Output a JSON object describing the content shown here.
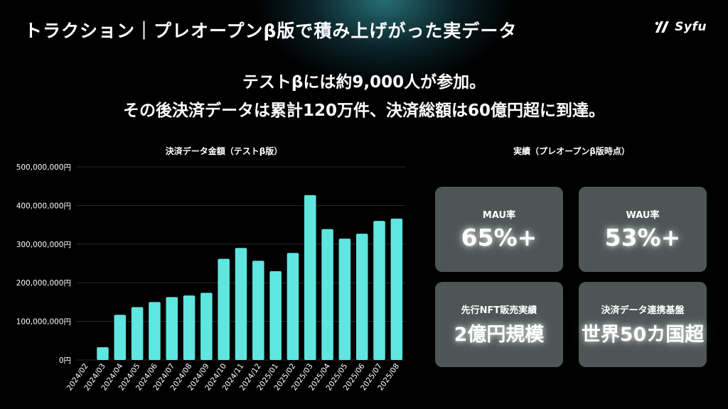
{
  "header": {
    "title": "トラクション｜プレオープンβ版で積み上げがった実データ",
    "logo_text": "Syfu",
    "logo_icon": "syfu-logo-mark"
  },
  "headline": {
    "line1": "テストβには約9,000人が参加。",
    "line2": "その後決済データは累計120万件、決済総額は60億円超に到達。"
  },
  "stats": {
    "title": "実績（プレオープンβ版時点）",
    "cards": [
      {
        "label": "MAU率",
        "value": "65%+"
      },
      {
        "label": "WAU率",
        "value": "53%+"
      },
      {
        "label": "先行NFT販売実績",
        "value": "2億円規模"
      },
      {
        "label": "決済データ連携基盤",
        "value": "世界50カ国超"
      }
    ]
  },
  "colors": {
    "bar": "#5ee6df",
    "background": "#000000",
    "card": "#4d5655",
    "grid": "#2a2a2a"
  },
  "chart_data": {
    "type": "bar",
    "title": "決済データ金額（テストβ版）",
    "categories": [
      "2024/02",
      "2024/03",
      "2024/04",
      "2024/05",
      "2024/06",
      "2024/07",
      "2024/08",
      "2024/09",
      "2024/10",
      "2024/11",
      "2024/12",
      "2025/01",
      "2025/02",
      "2025/03",
      "2025/04",
      "2025/05",
      "2025/06",
      "2025/07",
      "2025/08"
    ],
    "values": [
      0,
      33000000,
      117000000,
      137000000,
      150000000,
      163000000,
      167000000,
      174000000,
      262000000,
      290000000,
      257000000,
      230000000,
      277000000,
      427000000,
      339000000,
      314000000,
      327000000,
      360000000,
      366000000
    ],
    "ylim": [
      0,
      500000000
    ],
    "yticks": [
      0,
      100000000,
      200000000,
      300000000,
      400000000,
      500000000
    ],
    "ytick_labels": [
      "0円",
      "100,000,000円",
      "200,000,000円",
      "300,000,000円",
      "400,000,000円",
      "500,000,000円"
    ],
    "xlabel": "",
    "ylabel": "",
    "grid": true,
    "legend": "none"
  }
}
